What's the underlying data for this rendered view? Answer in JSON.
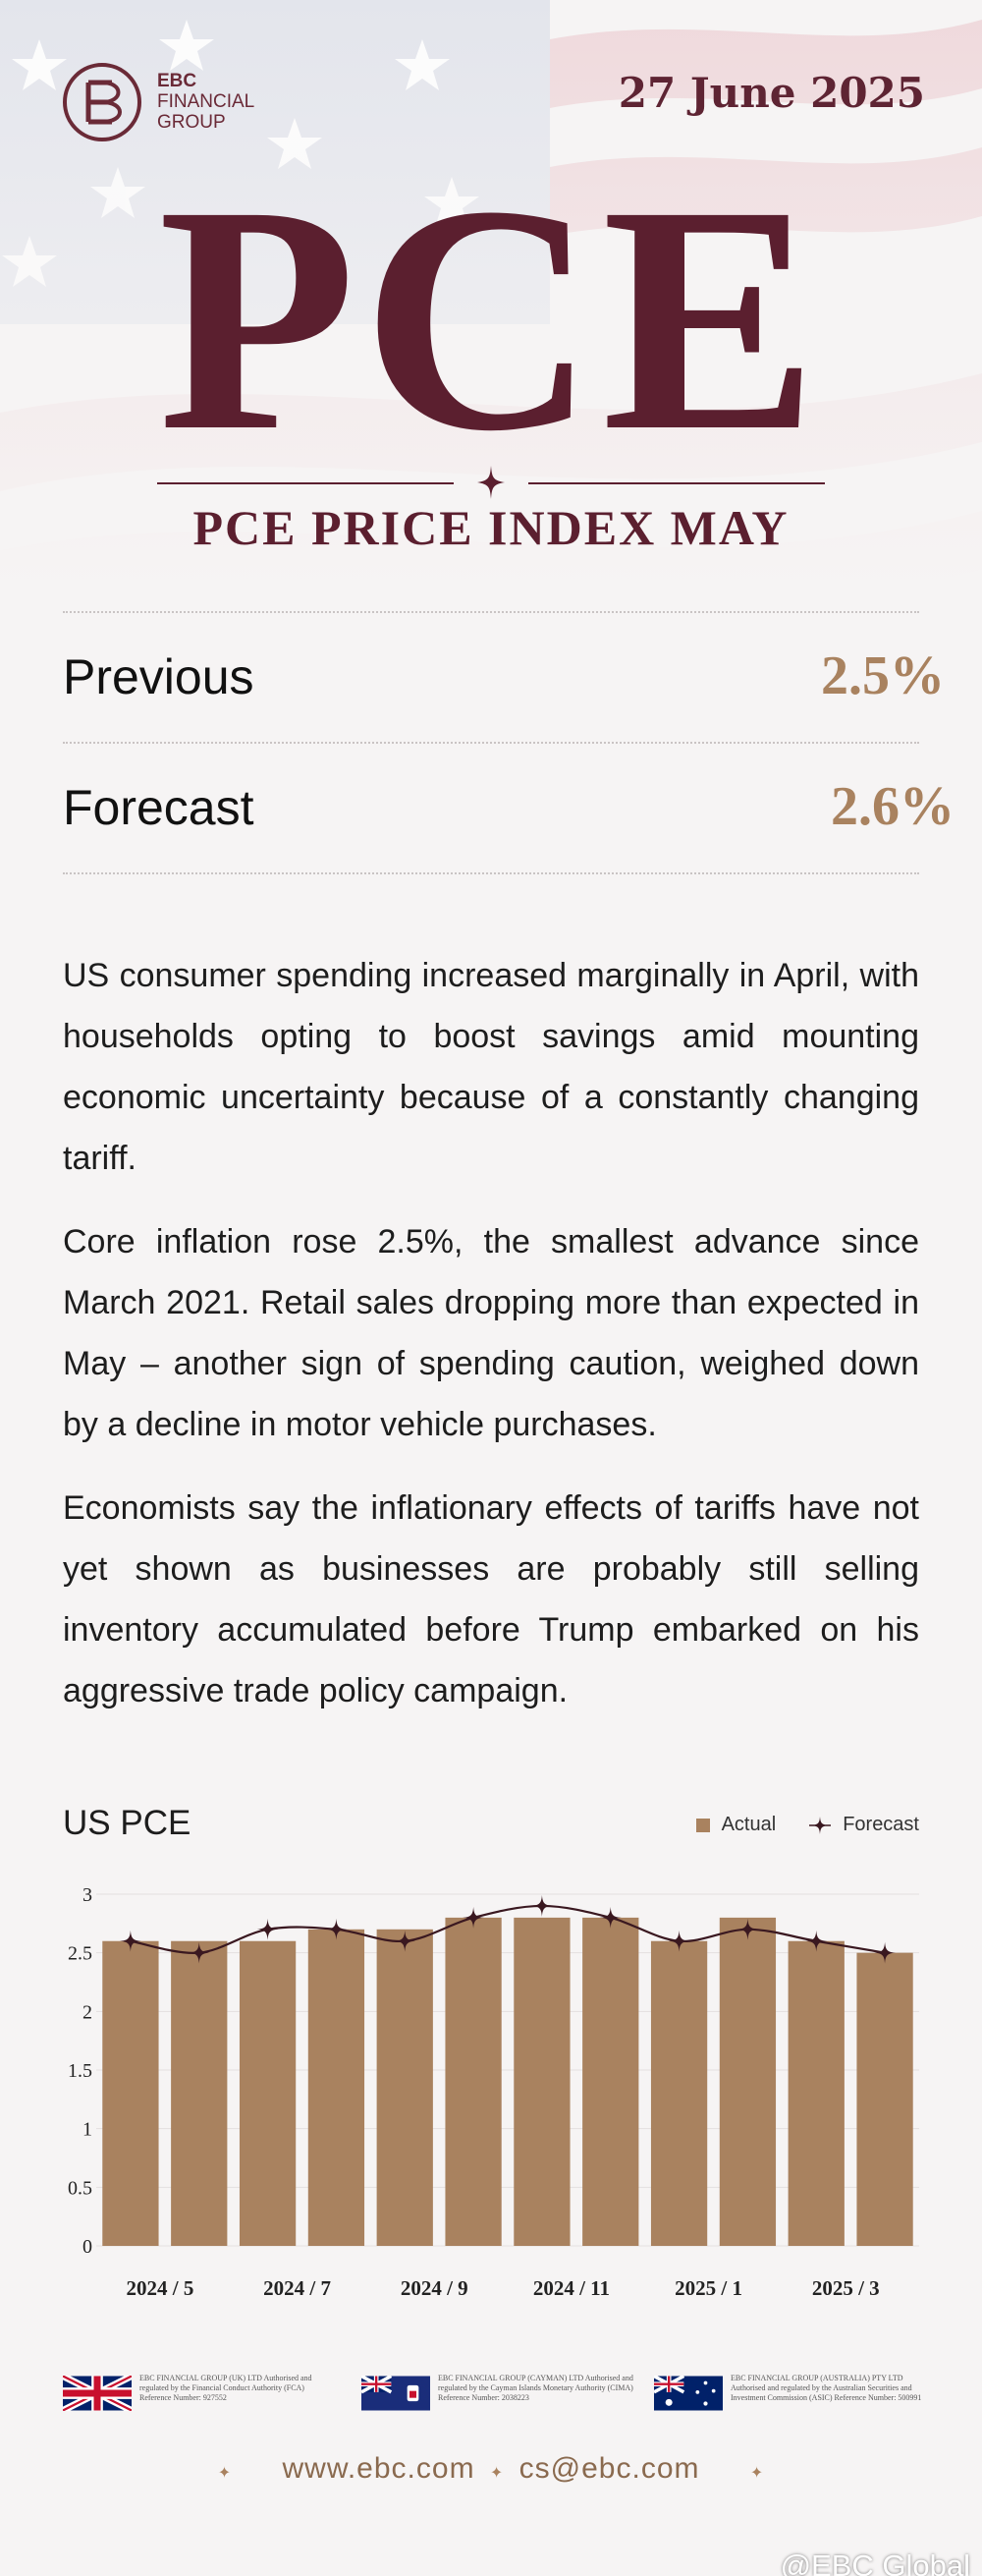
{
  "header": {
    "logo_line1": "EBC",
    "logo_line2": "FINANCIAL",
    "logo_line3": "GROUP",
    "date": "27 June 2025",
    "big_title": "PCE",
    "subtitle": "PCE PRICE INDEX MAY"
  },
  "metrics": [
    {
      "label": "Previous",
      "value": "2.5%"
    },
    {
      "label": "Forecast",
      "value": "2.6%"
    }
  ],
  "paragraphs": [
    "US consumer spending increased marginally in April, with households opting to boost savings amid mounting economic uncertainty because of a constantly changing tariff.",
    "Core inflation rose 2.5%, the smallest advance since March 2021. Retail sales dropping more than expected in May – another sign of spending caution, weighed down by a decline in motor vehicle purchases.",
    "Economists say the inflationary effects of tariffs have not yet shown as businesses are probably still selling inventory accumulated before Trump embarked on his aggressive trade policy campaign."
  ],
  "chart_data": {
    "type": "bar",
    "title": "US PCE",
    "categories": [
      "2024 / 5",
      "2024 / 6",
      "2024 / 7",
      "2024 / 8",
      "2024 / 9",
      "2024 / 10",
      "2024 / 11",
      "2024 / 12",
      "2025 / 1",
      "2025 / 2",
      "2025 / 3",
      "2025 / 4"
    ],
    "tick_labels": [
      "2024 / 5",
      "2024 / 7",
      "2024 / 9",
      "2024 / 11",
      "2025 / 1",
      "2025 / 3"
    ],
    "series": [
      {
        "name": "Actual",
        "type": "bar",
        "values": [
          2.6,
          2.6,
          2.6,
          2.7,
          2.7,
          2.8,
          2.8,
          2.8,
          2.6,
          2.8,
          2.6,
          2.5
        ]
      },
      {
        "name": "Forecast",
        "type": "line",
        "values": [
          2.6,
          2.5,
          2.7,
          2.7,
          2.6,
          2.8,
          2.9,
          2.8,
          2.6,
          2.7,
          2.6,
          2.5
        ]
      }
    ],
    "ylim": [
      0,
      3
    ],
    "yticks": [
      "0",
      "0.5",
      "1",
      "1.5",
      "2",
      "2.5",
      "3"
    ],
    "grid": true,
    "legend": "top-right",
    "colors": {
      "bar": "#a9825f",
      "line": "#3a1820",
      "marker": "#3a1820"
    }
  },
  "footer": {
    "regulators": [
      {
        "flag": "uk-flag-icon",
        "text": "EBC FINANCIAL GROUP (UK) LTD Authorised and regulated by the Financial Conduct Authority (FCA) Reference Number: 927552"
      },
      {
        "flag": "cayman-flag-icon",
        "text": "EBC FINANCIAL GROUP (CAYMAN) LTD Authorised and regulated by the Cayman Islands Monetary Authority (CIMA) Reference Number: 2038223"
      },
      {
        "flag": "australia-flag-icon",
        "text": "EBC FINANCIAL GROUP (AUSTRALIA) PTY LTD Authorised and regulated by the Australian Securities and Investment Commission (ASIC) Reference Number: 500991"
      }
    ],
    "website": "www.ebc.com",
    "email": "cs@ebc.com",
    "watermark": "@EBC Global"
  }
}
